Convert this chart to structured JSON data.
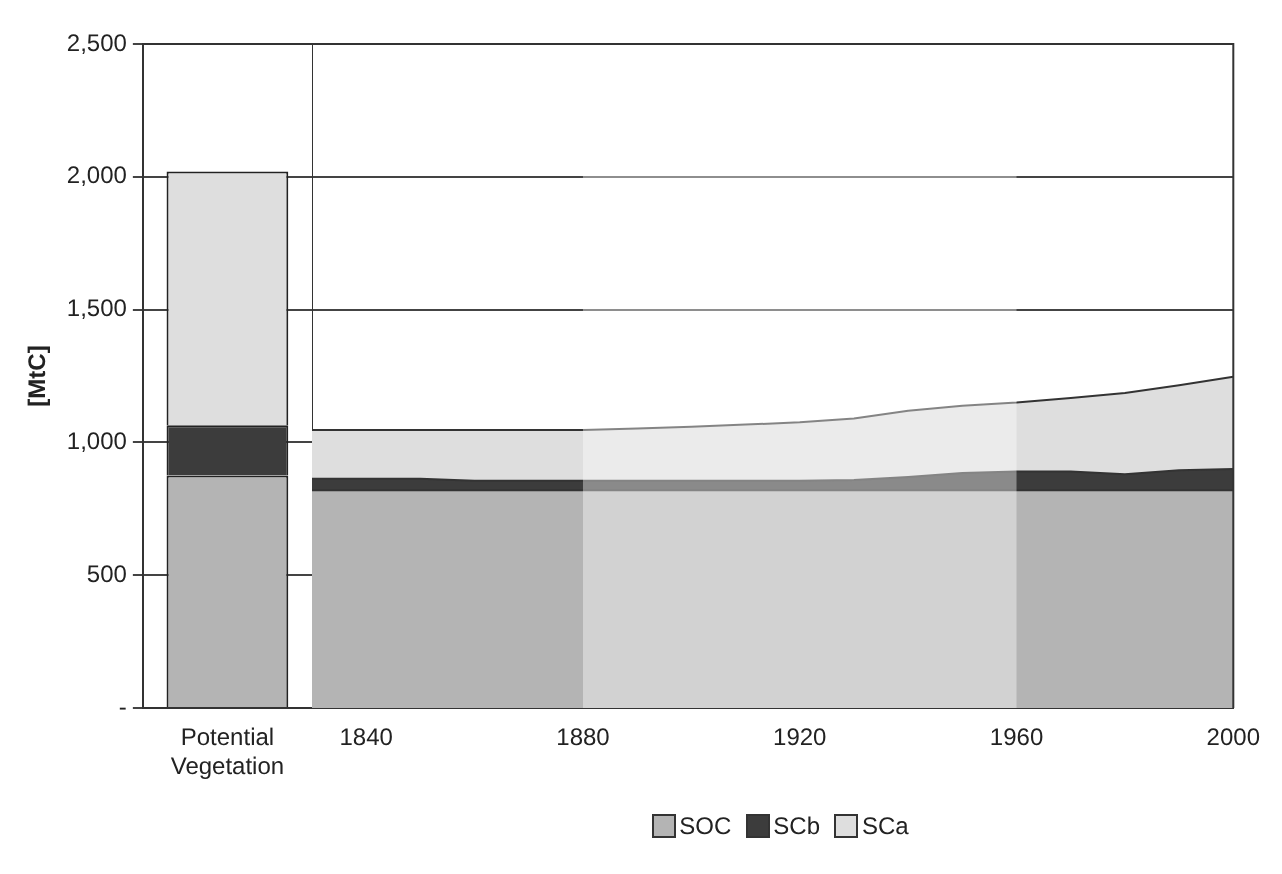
{
  "chart_data": [
    {
      "type": "bar",
      "stacked": true,
      "categories": [
        "Potential Vegetation"
      ],
      "ylabel": "[MtC]",
      "ylim": [
        0,
        2500
      ],
      "yticks": [
        {
          "value": 0,
          "label": "-"
        },
        500,
        {
          "value": 1000,
          "label": "1,000"
        },
        {
          "value": 1500,
          "label": "1,500"
        },
        {
          "value": 2000,
          "label": "2,000"
        },
        {
          "value": 2500,
          "label": "2,500"
        }
      ],
      "grid": "y",
      "legend": "bottom",
      "series": [
        {
          "name": "SOC",
          "color": "#b4b4b4",
          "values": [
            875
          ]
        },
        {
          "name": "SCb",
          "color": "#3c3c3c",
          "values": [
            190
          ]
        },
        {
          "name": "SCa",
          "color": "#dedede",
          "values": [
            955
          ]
        }
      ]
    },
    {
      "type": "area",
      "stacked": true,
      "x": [
        1830,
        1840,
        1850,
        1860,
        1870,
        1880,
        1890,
        1900,
        1910,
        1920,
        1930,
        1940,
        1950,
        1960,
        1970,
        1980,
        1990,
        2000
      ],
      "xlim": [
        1830,
        2000
      ],
      "xticks": [
        1840,
        1880,
        1920,
        1960,
        2000
      ],
      "ylim": [
        0,
        2500
      ],
      "yticks": [
        0,
        500,
        1000,
        1500,
        2000,
        2500
      ],
      "tick_labels": "x",
      "grid": "y",
      "bands": [
        {
          "axis": "x",
          "from": 1880,
          "to": 1960,
          "color": "#ffffff"
        }
      ],
      "series": [
        {
          "color": "#b4b4b4",
          "values": [
            820,
            820,
            820,
            820,
            820,
            820,
            820,
            820,
            820,
            820,
            820,
            820,
            820,
            820,
            820,
            820,
            820,
            820
          ]
        },
        {
          "color": "#3c3c3c",
          "values": [
            43,
            43,
            43,
            36,
            36,
            36,
            36,
            36,
            36,
            36,
            38,
            50,
            65,
            70,
            70,
            60,
            75,
            80
          ]
        },
        {
          "color": "#dedede",
          "values": [
            184,
            184,
            184,
            191,
            191,
            191,
            196,
            203,
            211,
            220,
            232,
            249,
            253,
            260,
            277,
            306,
            320,
            347
          ]
        }
      ]
    }
  ]
}
